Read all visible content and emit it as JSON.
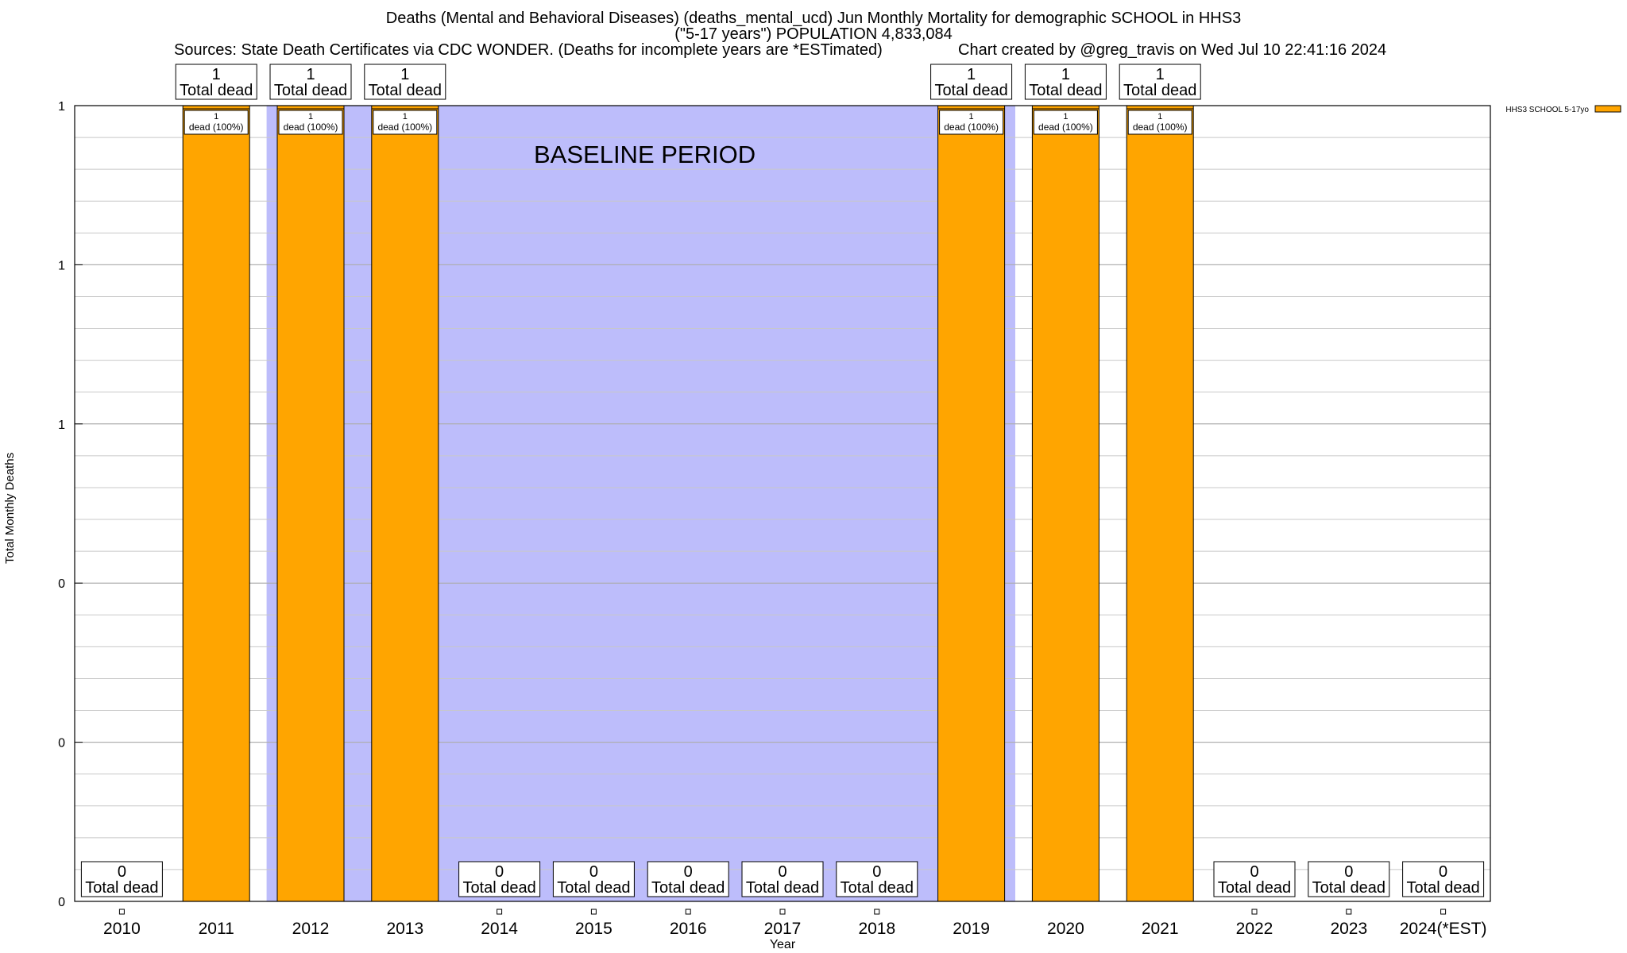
{
  "header": {
    "title_line1": "Deaths (Mental and Behavioral Diseases) (deaths_mental_ucd) Jun Monthly Mortality for demographic SCHOOL in HHS3",
    "title_line2": "(\"5-17 years\") POPULATION 4,833,084",
    "sources": "Sources: State Death Certificates via CDC WONDER. (Deaths for incomplete years are *ESTimated)",
    "credit": "Chart created by @greg_travis on Wed Jul 10 22:41:16 2024"
  },
  "chart_data": {
    "type": "bar",
    "title": "Deaths (Mental and Behavioral Diseases) (deaths_mental_ucd) Jun Monthly Mortality for demographic SCHOOL in HHS3",
    "xlabel": "Year",
    "ylabel": "Total Monthly Deaths",
    "categories": [
      "2010",
      "2011",
      "2012",
      "2013",
      "2014",
      "2015",
      "2016",
      "2017",
      "2018",
      "2019",
      "2020",
      "2021",
      "2022",
      "2023",
      "2024(*EST)"
    ],
    "series": [
      {
        "name": "HHS3 SCHOOL 5-17yo",
        "color": "#ffa500",
        "values": [
          0,
          1,
          1,
          1,
          0,
          0,
          0,
          0,
          0,
          1,
          1,
          1,
          0,
          0,
          0
        ]
      }
    ],
    "total_labels": [
      "0\nTotal dead",
      "1\nTotal dead",
      "1\nTotal dead",
      "1\nTotal dead",
      "0\nTotal dead",
      "0\nTotal dead",
      "0\nTotal dead",
      "0\nTotal dead",
      "0\nTotal dead",
      "1\nTotal dead",
      "1\nTotal dead",
      "1\nTotal dead",
      "0\nTotal dead",
      "0\nTotal dead",
      "0\nTotal dead"
    ],
    "bar_labels": [
      "",
      "1\ndead (100%)",
      "1\ndead (100%)",
      "1\ndead (100%)",
      "",
      "",
      "",
      "",
      "",
      "1\ndead (100%)",
      "1\ndead (100%)",
      "1\ndead (100%)",
      "",
      "",
      ""
    ],
    "ylim": [
      0,
      1
    ],
    "y_tick_values": [
      0,
      0.2,
      0.4,
      0.6,
      0.8,
      1.0
    ],
    "y_tick_labels": [
      "0",
      "0",
      "0",
      "1",
      "1",
      "1"
    ],
    "y_minor_step": 0.04,
    "baseline_period": {
      "label": "BASELINE PERIOD",
      "from_year": "2012",
      "to_year": "2019",
      "color": "#bdbdfb"
    },
    "grid": true,
    "legend_position": "top-right"
  }
}
